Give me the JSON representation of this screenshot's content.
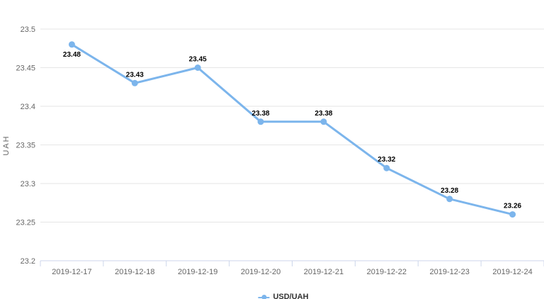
{
  "chart_data": {
    "type": "line",
    "title": "",
    "categories": [
      "2019-12-17",
      "2019-12-18",
      "2019-12-19",
      "2019-12-20",
      "2019-12-21",
      "2019-12-22",
      "2019-12-23",
      "2019-12-24"
    ],
    "series": [
      {
        "name": "USD/UAH",
        "values": [
          23.48,
          23.43,
          23.45,
          23.38,
          23.38,
          23.32,
          23.28,
          23.26
        ],
        "point_labels": [
          "23.48",
          "23.43",
          "23.45",
          "23.38",
          "23.38",
          "23.32",
          "23.28",
          "23.26"
        ]
      }
    ],
    "xlabel": "",
    "ylabel": "UAH",
    "ylim": [
      23.2,
      23.5
    ],
    "ytick_step": 0.05,
    "ytick_labels": [
      "23.2",
      "23.25",
      "23.3",
      "23.35",
      "23.4",
      "23.45",
      "23.5"
    ],
    "grid": true,
    "legend_position": "bottom-center",
    "colors": {
      "line": "#7cb5ec",
      "marker": "#7cb5ec",
      "grid": "#e6e6e6",
      "axis": "#ccd6eb",
      "tick_text": "#666666",
      "data_label": "#000000",
      "axis_title": "#666666",
      "legend_text": "#333333",
      "background": "#ffffff"
    }
  }
}
